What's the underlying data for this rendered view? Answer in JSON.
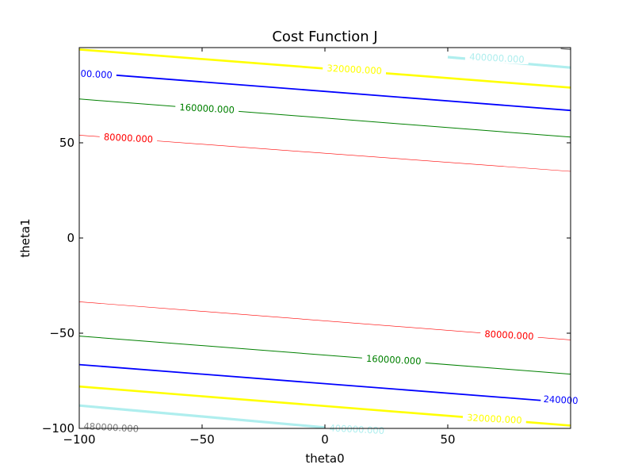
{
  "chart_data": {
    "type": "contour",
    "title": "Cost Function J",
    "xlabel": "theta0",
    "ylabel": "theta1",
    "xlim": [
      -100,
      100
    ],
    "ylim": [
      -100,
      100
    ],
    "xticks": [
      -100,
      -50,
      0,
      50
    ],
    "xtick_labels": [
      "−100",
      "−50",
      "0",
      "50"
    ],
    "yticks": [
      -100,
      -50,
      0,
      50
    ],
    "ytick_labels": [
      "−100",
      "−50",
      "0",
      "50"
    ],
    "grid": false,
    "levels": [
      {
        "value": 80000,
        "color": "#ff0000",
        "lines": [
          {
            "x": [
              -100,
              100
            ],
            "y": [
              54.0,
              35.0
            ]
          },
          {
            "x": [
              -100,
              100
            ],
            "y": [
              -33.5,
              -53.5
            ]
          }
        ],
        "labels": [
          {
            "text": "80000.000",
            "x": -80,
            "y": 52.5,
            "angle": 3
          },
          {
            "text": "80000.000",
            "x": 75,
            "y": -51.0,
            "angle": 3
          }
        ]
      },
      {
        "value": 160000,
        "color": "#008000",
        "lines": [
          {
            "x": [
              -100,
              100
            ],
            "y": [
              73.0,
              53.0
            ]
          },
          {
            "x": [
              -100,
              100
            ],
            "y": [
              -51.5,
              -71.5
            ]
          }
        ],
        "labels": [
          {
            "text": "160000.000",
            "x": -48,
            "y": 68.0,
            "angle": 3
          },
          {
            "text": "160000.000",
            "x": 28,
            "y": -64.0,
            "angle": 3
          }
        ]
      },
      {
        "value": 240000,
        "color": "#0000ff",
        "lines": [
          {
            "x": [
              -100,
              100
            ],
            "y": [
              87.0,
              67.0
            ]
          },
          {
            "x": [
              -100,
              100
            ],
            "y": [
              -66.5,
              -86.5
            ]
          }
        ],
        "labels": [
          {
            "text": "00.000",
            "x": -93,
            "y": 86.0,
            "angle": 3
          },
          {
            "text": "240000",
            "x": 96,
            "y": -85.0,
            "angle": 3
          }
        ]
      },
      {
        "value": 320000,
        "color": "#ffff00",
        "lines": [
          {
            "x": [
              -100,
              100
            ],
            "y": [
              99.0,
              79.0
            ]
          },
          {
            "x": [
              -100,
              100
            ],
            "y": [
              -78.0,
              -98.5
            ]
          }
        ],
        "labels": [
          {
            "text": "320000.000",
            "x": 12,
            "y": 88.5,
            "angle": 3
          },
          {
            "text": "320000.000",
            "x": 69,
            "y": -95.0,
            "angle": 3
          }
        ]
      },
      {
        "value": 400000,
        "color": "#afeeee",
        "lines": [
          {
            "x": [
              50,
              100
            ],
            "y": [
              95.0,
              89.5
            ]
          },
          {
            "x": [
              -100,
              0
            ],
            "y": [
              -88.0,
              -99.5
            ]
          }
        ],
        "labels": [
          {
            "text": "400000.000",
            "x": 70,
            "y": 94.5,
            "angle": 3
          },
          {
            "text": "400000.000",
            "x": 13,
            "y": -100.5,
            "angle": 3
          }
        ]
      },
      {
        "value": 480000,
        "color": "#808080",
        "lines": [
          {
            "x": [
              96,
              100
            ],
            "y": [
              99.5,
              99.0
            ]
          }
        ],
        "labels": [
          {
            "text": "480000.000",
            "x": -87,
            "y": -99.5,
            "angle": 3
          }
        ]
      }
    ]
  }
}
